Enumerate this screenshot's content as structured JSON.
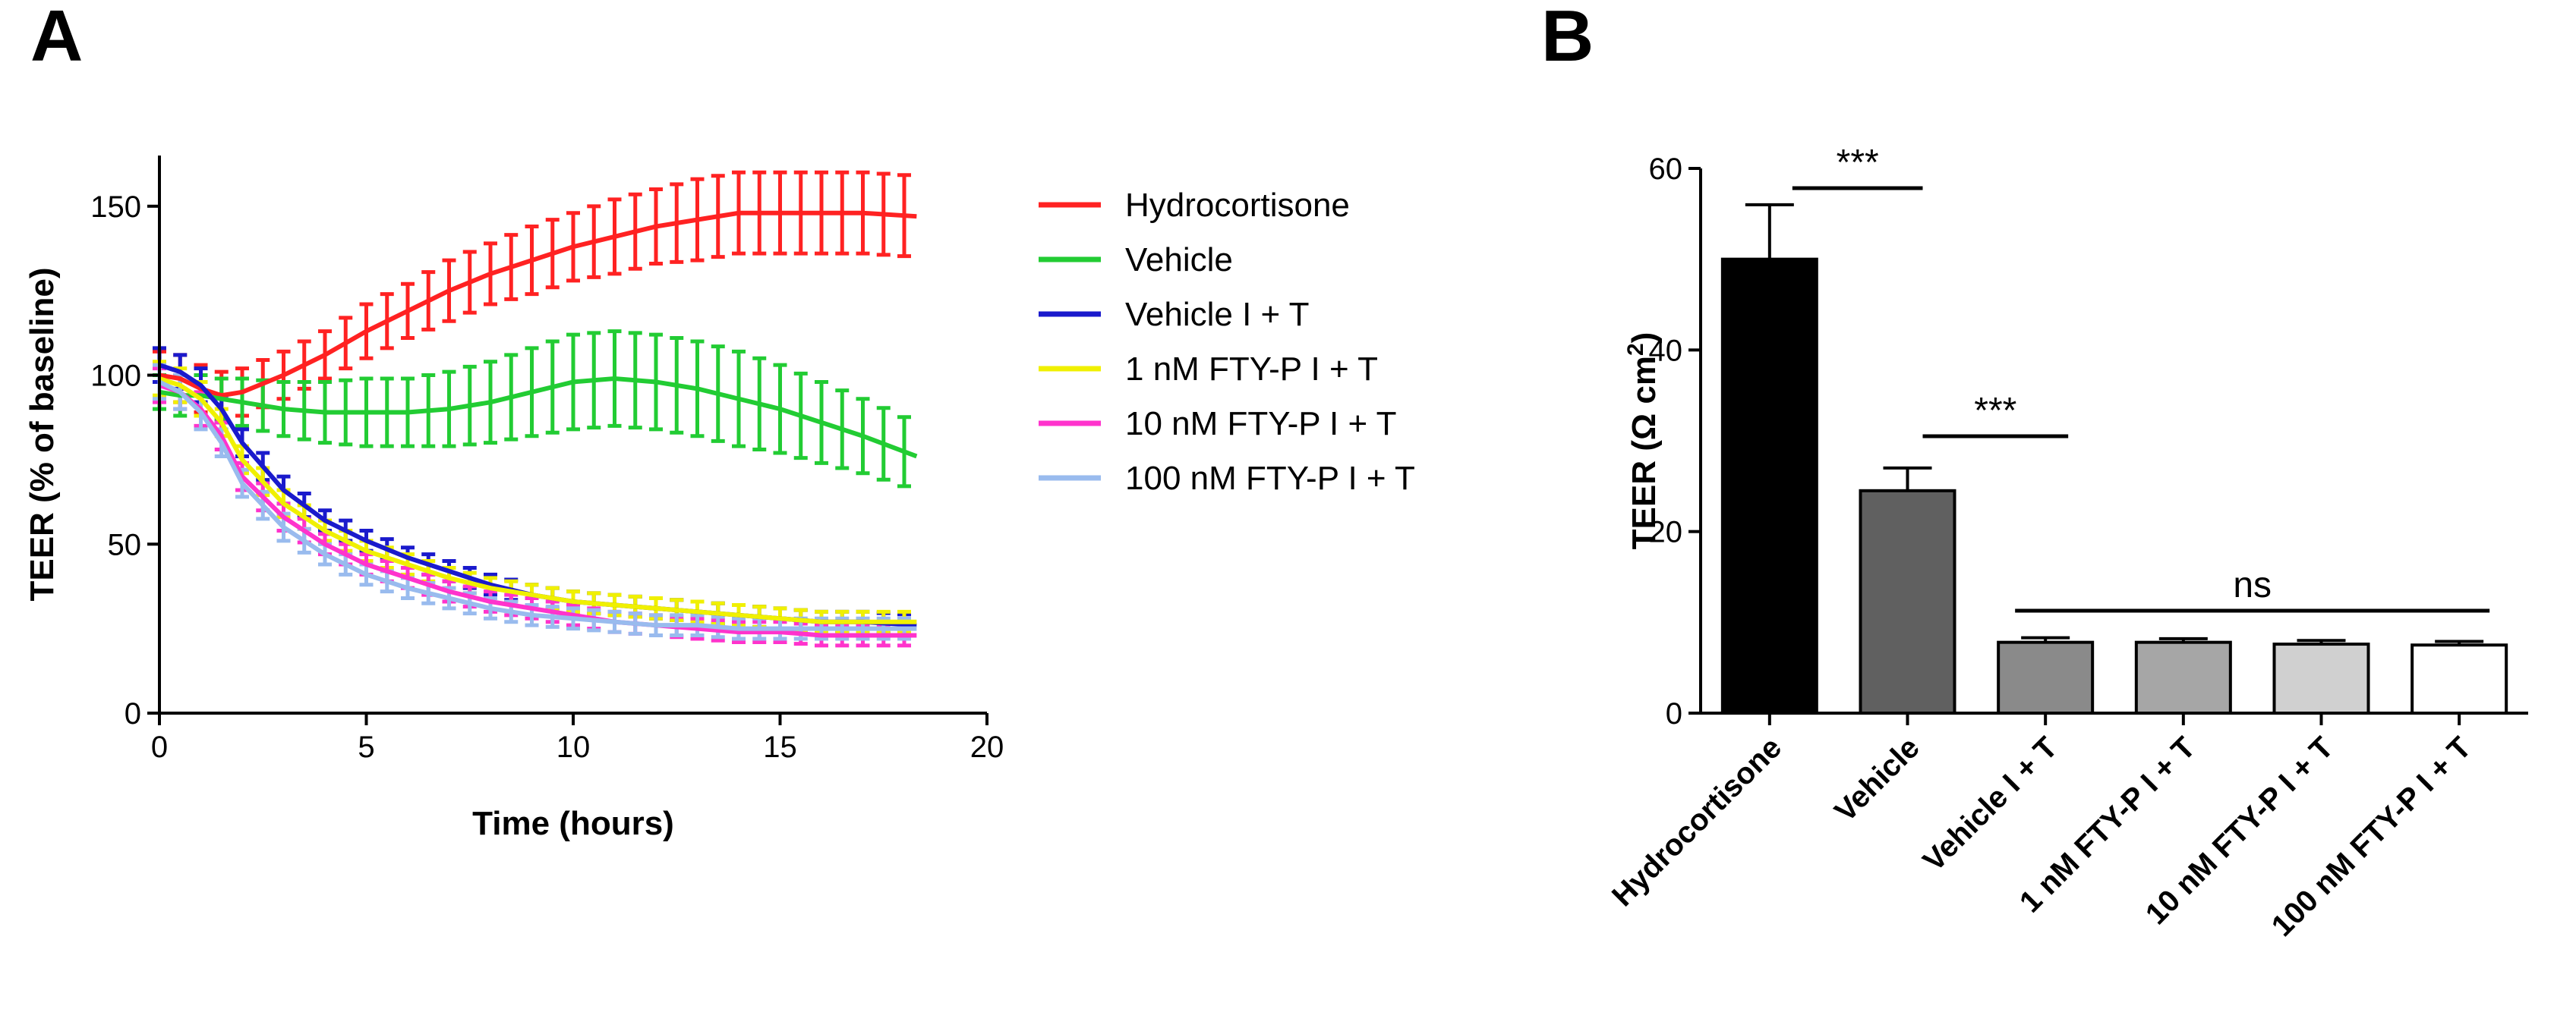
{
  "panels": {
    "a_letter": "A",
    "b_letter": "B"
  },
  "chart_data": [
    {
      "type": "line",
      "panel": "A",
      "title": "",
      "xlabel": "Time (hours)",
      "ylabel": "TEER (% of baseline)",
      "xlim": [
        0,
        20
      ],
      "ylim": [
        0,
        165
      ],
      "xticks": [
        "0",
        "5",
        "10",
        "15",
        "20"
      ],
      "yticks": [
        "0",
        "50",
        "100",
        "150"
      ],
      "x": [
        0,
        0.5,
        1,
        1.5,
        2,
        3,
        4,
        5,
        6,
        7,
        8,
        9,
        10,
        11,
        12,
        13,
        14,
        15,
        16,
        17,
        18.3
      ],
      "series": [
        {
          "name": "Hydrocortisone",
          "color": "#ff2222",
          "values": [
            100,
            99,
            96,
            94,
            95,
            100,
            106,
            113,
            119,
            125,
            130,
            134,
            138,
            141,
            144,
            146,
            148,
            148,
            148,
            148,
            147
          ],
          "errors": [
            7,
            7,
            7,
            7,
            7,
            7,
            7,
            8,
            8,
            9,
            9,
            10,
            10,
            11,
            11,
            12,
            12,
            12,
            12,
            12,
            12
          ]
        },
        {
          "name": "Vehicle",
          "color": "#22cc33",
          "values": [
            95,
            94,
            94,
            93,
            92,
            90,
            89,
            89,
            89,
            90,
            92,
            95,
            98,
            99,
            98,
            96,
            93,
            90,
            86,
            82,
            76
          ],
          "errors": [
            5,
            6,
            6,
            6,
            7,
            8,
            9,
            10,
            10,
            11,
            12,
            13,
            14,
            14,
            14,
            14,
            14,
            13,
            12,
            11,
            10
          ]
        },
        {
          "name": "Vehicle I + T",
          "color": "#1a1acc",
          "values": [
            103,
            101,
            97,
            90,
            80,
            66,
            57,
            51,
            46,
            42,
            38,
            35,
            33,
            32,
            31,
            30,
            29,
            28,
            27,
            27,
            26
          ],
          "errors": [
            5,
            5,
            5,
            4,
            4,
            4,
            3,
            3,
            3,
            3,
            3,
            3,
            3,
            3,
            3,
            3,
            3,
            3,
            3,
            3,
            3
          ]
        },
        {
          "name": "1 nM FTY-P I + T",
          "color": "#f0f000",
          "values": [
            99,
            97,
            93,
            86,
            75,
            62,
            54,
            48,
            44,
            40,
            37,
            35,
            33,
            32,
            31,
            30,
            29,
            28,
            27,
            27,
            27
          ],
          "errors": [
            5,
            5,
            5,
            4,
            4,
            4,
            3,
            3,
            3,
            3,
            3,
            3,
            3,
            3,
            3,
            3,
            3,
            3,
            3,
            3,
            3
          ]
        },
        {
          "name": "10 nM FTY-P I + T",
          "color": "#ff33cc",
          "values": [
            97,
            95,
            90,
            82,
            70,
            58,
            50,
            44,
            40,
            36,
            33,
            31,
            29,
            27,
            26,
            25,
            24,
            24,
            23,
            23,
            23
          ],
          "errors": [
            5,
            5,
            5,
            4,
            4,
            4,
            3,
            3,
            3,
            3,
            3,
            3,
            3,
            3,
            3,
            3,
            3,
            3,
            3,
            3,
            3
          ]
        },
        {
          "name": "100 nM FTY-P I + T",
          "color": "#99bbee",
          "values": [
            98,
            95,
            89,
            80,
            68,
            55,
            47,
            41,
            37,
            34,
            31,
            29,
            28,
            27,
            26,
            26,
            25,
            25,
            25,
            25,
            25
          ],
          "errors": [
            5,
            5,
            5,
            4,
            4,
            4,
            3,
            3,
            3,
            3,
            3,
            3,
            3,
            3,
            3,
            3,
            3,
            3,
            3,
            3,
            3
          ]
        }
      ]
    },
    {
      "type": "bar",
      "panel": "B",
      "title": "",
      "xlabel": "",
      "ylabel": "TEER (Ω cm",
      "ylabel_sup": "2",
      "ylabel_end": ")",
      "ylim": [
        0,
        60
      ],
      "yticks": [
        "0",
        "20",
        "40",
        "60"
      ],
      "categories": [
        "Hydrocortisone",
        "Vehicle",
        "Vehicle I + T",
        "1 nM FTY-P I + T",
        "10 nM FTY-P I + T",
        "100 nM FTY-P I + T"
      ],
      "values": [
        50,
        24.5,
        7.8,
        7.8,
        7.6,
        7.5
      ],
      "errors": [
        6,
        2.5,
        0.5,
        0.4,
        0.4,
        0.4
      ],
      "colors": [
        "#000000",
        "#606060",
        "#8a8a8a",
        "#a6a6a6",
        "#d0d0d0",
        "#ffffff"
      ],
      "annotations": [
        {
          "text": "***",
          "from": 0,
          "to": 1
        },
        {
          "text": "***",
          "from": 1,
          "to": 2
        },
        {
          "text": "ns",
          "from": 2,
          "to": 5
        }
      ]
    }
  ]
}
